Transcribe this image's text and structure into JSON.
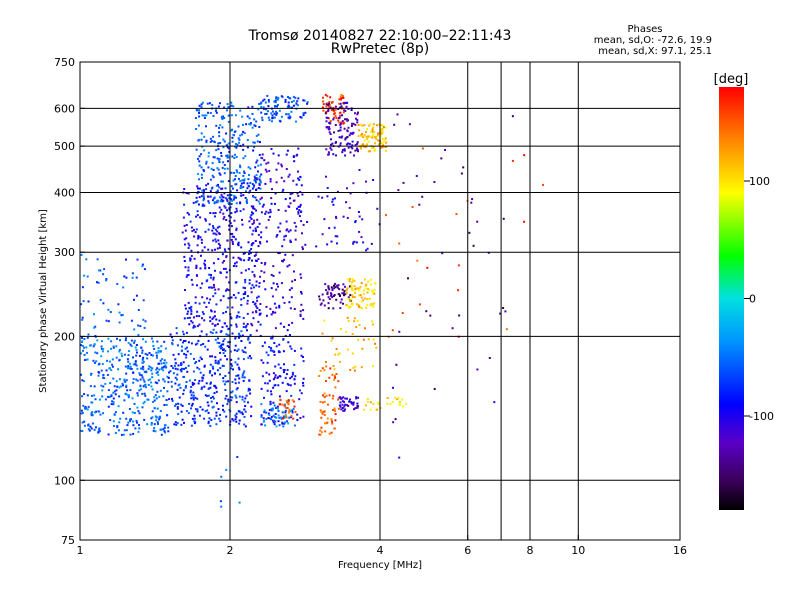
{
  "header": {
    "title": "Tromsø 20140827 22:10:00–22:11:43",
    "subtitle": "RwPretec (8p)",
    "phases_heading": "Phases",
    "phases_line1": "mean, sd,O: -72.6, 19.9",
    "phases_line2": "mean, sd,X:  97.1, 25.1"
  },
  "chart_data": {
    "type": "scatter",
    "title": "Tromsø 20140827 22:10:00–22:11:43",
    "subtitle": "RwPretec (8p)",
    "xlabel": "Frequency [MHz]",
    "ylabel": "Stationary phase Virtual Height [km]",
    "x_scale": "log",
    "y_scale": "log",
    "xlim": [
      1,
      16
    ],
    "ylim": [
      75,
      750
    ],
    "x_ticks": [
      1,
      2,
      4,
      6,
      8,
      10,
      16
    ],
    "x_tick_labels": [
      "1",
      "2",
      "4",
      "6",
      "8",
      "10",
      "16"
    ],
    "x_gridlines": [
      2,
      4,
      6,
      7,
      8,
      10
    ],
    "y_ticks": [
      75,
      100,
      200,
      300,
      400,
      500,
      600,
      750
    ],
    "y_tick_labels": [
      "75",
      "100",
      "200",
      "300",
      "400",
      "500",
      "600",
      "750"
    ],
    "y_gridlines": [
      100,
      200,
      300,
      400,
      500,
      600
    ],
    "grid": true,
    "colorbar": {
      "label": "[deg]",
      "range": [
        -180,
        180
      ],
      "ticks": [
        100,
        0,
        -100
      ],
      "tick_labels": [
        "100",
        "0",
        "-100"
      ],
      "colormap": "black-purple-blue-cyan-green-yellow-orange-red"
    },
    "series": [
      {
        "f_range": [
          1.0,
          1.5
        ],
        "h_range": [
          125,
          200
        ],
        "phase": -55,
        "count": 420
      },
      {
        "f_range": [
          1.0,
          1.35
        ],
        "h_range": [
          200,
          300
        ],
        "phase": -60,
        "count": 60
      },
      {
        "f_range": [
          1.5,
          2.2
        ],
        "h_range": [
          130,
          210
        ],
        "phase": -75,
        "count": 380
      },
      {
        "f_range": [
          1.6,
          2.3
        ],
        "h_range": [
          210,
          420
        ],
        "phase": -95,
        "count": 420
      },
      {
        "f_range": [
          1.7,
          2.3
        ],
        "h_range": [
          380,
          620
        ],
        "phase": -60,
        "count": 300
      },
      {
        "f_range": [
          2.3,
          2.8
        ],
        "h_range": [
          130,
          200
        ],
        "phase": -90,
        "count": 120
      },
      {
        "f_range": [
          2.2,
          2.8
        ],
        "h_range": [
          200,
          500
        ],
        "phase": -110,
        "count": 200
      },
      {
        "f_range": [
          2.3,
          2.85
        ],
        "h_range": [
          560,
          640
        ],
        "phase": -65,
        "count": 90
      },
      {
        "f_range": [
          2.3,
          2.7
        ],
        "h_range": [
          130,
          145
        ],
        "phase": -45,
        "count": 50
      },
      {
        "f_range": [
          2.5,
          2.7
        ],
        "h_range": [
          135,
          150
        ],
        "phase": 150,
        "count": 25
      },
      {
        "f_range": [
          3.0,
          3.3
        ],
        "h_range": [
          125,
          175
        ],
        "phase": 150,
        "count": 60
      },
      {
        "f_range": [
          3.0,
          3.5
        ],
        "h_range": [
          230,
          260
        ],
        "phase": -140,
        "count": 60
      },
      {
        "f_range": [
          3.4,
          3.9
        ],
        "h_range": [
          230,
          265
        ],
        "phase": 110,
        "count": 80
      },
      {
        "f_range": [
          3.3,
          3.6
        ],
        "h_range": [
          140,
          150
        ],
        "phase": -110,
        "count": 40
      },
      {
        "f_range": [
          3.05,
          3.4
        ],
        "h_range": [
          560,
          650
        ],
        "phase": 160,
        "count": 60
      },
      {
        "f_range": [
          3.1,
          3.6
        ],
        "h_range": [
          480,
          620
        ],
        "phase": -120,
        "count": 120
      },
      {
        "f_range": [
          3.6,
          4.1
        ],
        "h_range": [
          490,
          560
        ],
        "phase": 110,
        "count": 90
      },
      {
        "f_range": [
          3.0,
          4.0
        ],
        "h_range": [
          170,
          220
        ],
        "phase": 120,
        "count": 40
      },
      {
        "f_range": [
          3.7,
          4.5
        ],
        "h_range": [
          140,
          150
        ],
        "phase": 105,
        "count": 25
      },
      {
        "f_range": [
          2.5,
          4.0
        ],
        "h_range": [
          300,
          450
        ],
        "phase": -100,
        "count": 70
      },
      {
        "f_range": [
          4.2,
          7.5
        ],
        "h_range": [
          100,
          600
        ],
        "phase": -130,
        "count": 40
      },
      {
        "f_range": [
          4.0,
          9.0
        ],
        "h_range": [
          200,
          500
        ],
        "phase": 160,
        "count": 20
      },
      {
        "f_range": [
          1.9,
          2.1
        ],
        "h_range": [
          80,
          120
        ],
        "phase": -60,
        "count": 6
      }
    ]
  }
}
